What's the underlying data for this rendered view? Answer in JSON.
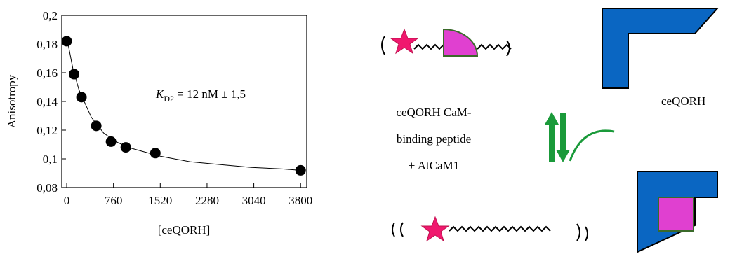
{
  "chart_data": {
    "type": "scatter",
    "xlabel": "[ceQORH]",
    "ylabel": "Anisotropy",
    "annotation": {
      "symbol": "K",
      "subscript": "D2",
      "text": " = 12 nM ± 1,5"
    },
    "xlim": [
      -80,
      3900
    ],
    "ylim": [
      0.08,
      0.2
    ],
    "xticks": [
      0,
      760,
      1520,
      2280,
      3040,
      3800
    ],
    "yticks": [
      {
        "value": 0.08,
        "label": "0,08"
      },
      {
        "value": 0.1,
        "label": "0,1"
      },
      {
        "value": 0.12,
        "label": "0,12"
      },
      {
        "value": 0.14,
        "label": "0,14"
      },
      {
        "value": 0.16,
        "label": "0,16"
      },
      {
        "value": 0.18,
        "label": "0,18"
      },
      {
        "value": 0.2,
        "label": "0,2"
      }
    ],
    "series": [
      {
        "mode": "markers",
        "color": "#000000",
        "x": [
          0,
          120,
          240,
          480,
          720,
          960,
          1440,
          3800
        ],
        "values": [
          0.182,
          0.159,
          0.143,
          0.123,
          0.112,
          0.108,
          0.104,
          0.092
        ]
      },
      {
        "mode": "line",
        "color": "#000000",
        "x": [
          0,
          100,
          200,
          400,
          600,
          800,
          1000,
          1500,
          2000,
          2500,
          3000,
          3500,
          3800
        ],
        "values": [
          0.185,
          0.163,
          0.148,
          0.129,
          0.118,
          0.112,
          0.108,
          0.102,
          0.098,
          0.096,
          0.094,
          0.093,
          0.092
        ]
      }
    ]
  },
  "diagram": {
    "complex_label": [
      "ceQORH CaM-",
      "binding peptide",
      "+ AtCaM1"
    ],
    "protein_label": "ceQORH"
  }
}
